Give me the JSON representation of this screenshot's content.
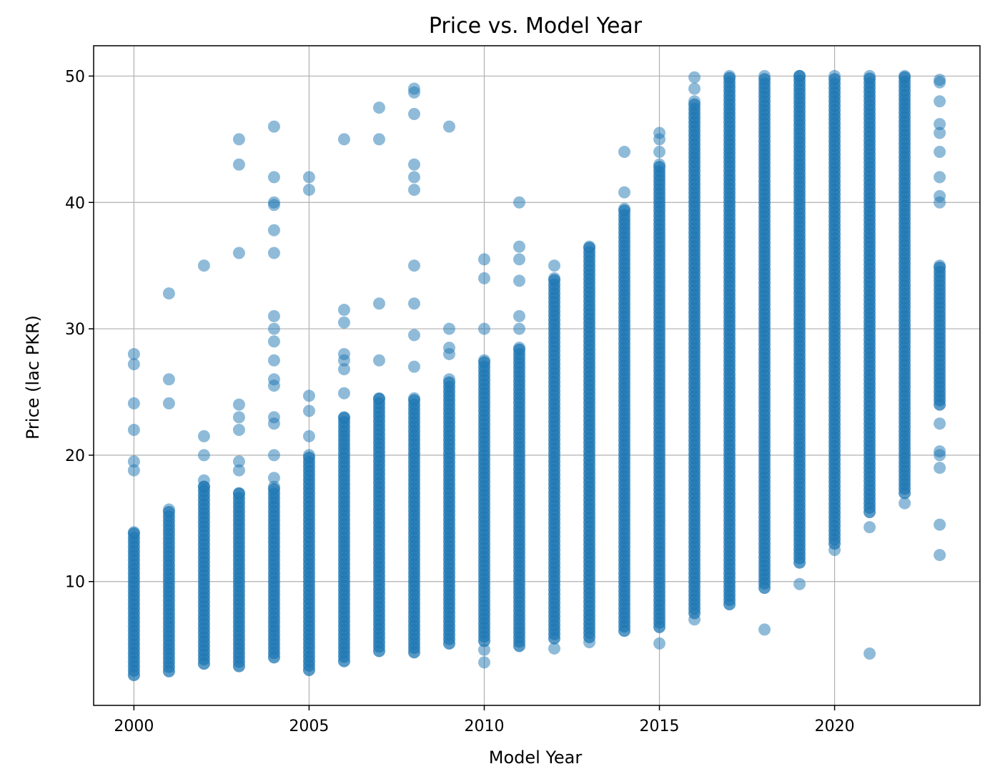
{
  "chart_data": {
    "type": "scatter",
    "title": "Price vs. Model Year",
    "xlabel": "Model Year",
    "ylabel": "Price (lac PKR)",
    "xlim": [
      1998.85,
      2024.15
    ],
    "ylim": [
      0.2,
      52.4
    ],
    "x_ticks": [
      2000,
      2005,
      2010,
      2015,
      2020
    ],
    "y_ticks": [
      10,
      20,
      30,
      40,
      50
    ],
    "grid": true,
    "marker_color": "#1f77b4",
    "marker_alpha": 0.5,
    "note_on_points": "Each year has a dense column of points spanning [dense_min, dense_max]; sparse outliers listed separately.",
    "dense_ranges": [
      {
        "year": 2000,
        "min": 2.6,
        "max": 13.9
      },
      {
        "year": 2001,
        "min": 2.9,
        "max": 15.7
      },
      {
        "year": 2002,
        "min": 3.5,
        "max": 17.5
      },
      {
        "year": 2003,
        "min": 3.3,
        "max": 17.0
      },
      {
        "year": 2004,
        "min": 4.0,
        "max": 17.5
      },
      {
        "year": 2005,
        "min": 3.0,
        "max": 20.0
      },
      {
        "year": 2006,
        "min": 3.7,
        "max": 23.0
      },
      {
        "year": 2007,
        "min": 4.5,
        "max": 24.5
      },
      {
        "year": 2008,
        "min": 4.4,
        "max": 24.5
      },
      {
        "year": 2009,
        "min": 5.1,
        "max": 26.0
      },
      {
        "year": 2010,
        "min": 5.3,
        "max": 27.5
      },
      {
        "year": 2011,
        "min": 4.9,
        "max": 28.5
      },
      {
        "year": 2012,
        "min": 5.5,
        "max": 34.0
      },
      {
        "year": 2013,
        "min": 5.6,
        "max": 36.5
      },
      {
        "year": 2014,
        "min": 6.1,
        "max": 39.5
      },
      {
        "year": 2015,
        "min": 6.4,
        "max": 43.0
      },
      {
        "year": 2016,
        "min": 7.5,
        "max": 48.0
      },
      {
        "year": 2017,
        "min": 8.2,
        "max": 50.0
      },
      {
        "year": 2018,
        "min": 9.5,
        "max": 50.0
      },
      {
        "year": 2019,
        "min": 11.5,
        "max": 50.0
      },
      {
        "year": 2020,
        "min": 13.0,
        "max": 50.0
      },
      {
        "year": 2021,
        "min": 15.5,
        "max": 50.0
      },
      {
        "year": 2022,
        "min": 17.0,
        "max": 50.0
      },
      {
        "year": 2023,
        "min": 24.0,
        "max": 35.0
      }
    ],
    "outliers": [
      {
        "x": 2000,
        "y": 28.0
      },
      {
        "x": 2000,
        "y": 27.2
      },
      {
        "x": 2000,
        "y": 24.1
      },
      {
        "x": 2000,
        "y": 22.0
      },
      {
        "x": 2000,
        "y": 19.5
      },
      {
        "x": 2000,
        "y": 18.8
      },
      {
        "x": 2001,
        "y": 32.8
      },
      {
        "x": 2001,
        "y": 26.0
      },
      {
        "x": 2001,
        "y": 24.1
      },
      {
        "x": 2002,
        "y": 35.0
      },
      {
        "x": 2002,
        "y": 21.5
      },
      {
        "x": 2002,
        "y": 20.0
      },
      {
        "x": 2002,
        "y": 18.0
      },
      {
        "x": 2003,
        "y": 45.0
      },
      {
        "x": 2003,
        "y": 43.0
      },
      {
        "x": 2003,
        "y": 36.0
      },
      {
        "x": 2003,
        "y": 24.0
      },
      {
        "x": 2003,
        "y": 23.0
      },
      {
        "x": 2003,
        "y": 22.0
      },
      {
        "x": 2003,
        "y": 19.5
      },
      {
        "x": 2003,
        "y": 18.8
      },
      {
        "x": 2004,
        "y": 46.0
      },
      {
        "x": 2004,
        "y": 42.0
      },
      {
        "x": 2004,
        "y": 40.0
      },
      {
        "x": 2004,
        "y": 39.8
      },
      {
        "x": 2004,
        "y": 37.8
      },
      {
        "x": 2004,
        "y": 36.0
      },
      {
        "x": 2004,
        "y": 31.0
      },
      {
        "x": 2004,
        "y": 30.0
      },
      {
        "x": 2004,
        "y": 29.0
      },
      {
        "x": 2004,
        "y": 27.5
      },
      {
        "x": 2004,
        "y": 26.0
      },
      {
        "x": 2004,
        "y": 25.5
      },
      {
        "x": 2004,
        "y": 23.0
      },
      {
        "x": 2004,
        "y": 22.5
      },
      {
        "x": 2004,
        "y": 20.0
      },
      {
        "x": 2004,
        "y": 18.2
      },
      {
        "x": 2005,
        "y": 42.0
      },
      {
        "x": 2005,
        "y": 41.0
      },
      {
        "x": 2005,
        "y": 24.7
      },
      {
        "x": 2005,
        "y": 23.5
      },
      {
        "x": 2005,
        "y": 21.5
      },
      {
        "x": 2006,
        "y": 45.0
      },
      {
        "x": 2006,
        "y": 31.5
      },
      {
        "x": 2006,
        "y": 30.5
      },
      {
        "x": 2006,
        "y": 28.0
      },
      {
        "x": 2006,
        "y": 27.5
      },
      {
        "x": 2006,
        "y": 26.8
      },
      {
        "x": 2006,
        "y": 24.9
      },
      {
        "x": 2007,
        "y": 47.5
      },
      {
        "x": 2007,
        "y": 45.0
      },
      {
        "x": 2007,
        "y": 32.0
      },
      {
        "x": 2007,
        "y": 27.5
      },
      {
        "x": 2008,
        "y": 49.0
      },
      {
        "x": 2008,
        "y": 48.7
      },
      {
        "x": 2008,
        "y": 47.0
      },
      {
        "x": 2008,
        "y": 43.0
      },
      {
        "x": 2008,
        "y": 42.0
      },
      {
        "x": 2008,
        "y": 41.0
      },
      {
        "x": 2008,
        "y": 35.0
      },
      {
        "x": 2008,
        "y": 32.0
      },
      {
        "x": 2008,
        "y": 29.5
      },
      {
        "x": 2008,
        "y": 27.0
      },
      {
        "x": 2009,
        "y": 46.0
      },
      {
        "x": 2009,
        "y": 30.0
      },
      {
        "x": 2009,
        "y": 28.5
      },
      {
        "x": 2009,
        "y": 28.0
      },
      {
        "x": 2010,
        "y": 35.5
      },
      {
        "x": 2010,
        "y": 34.0
      },
      {
        "x": 2010,
        "y": 30.0
      },
      {
        "x": 2010,
        "y": 4.6
      },
      {
        "x": 2010,
        "y": 3.6
      },
      {
        "x": 2011,
        "y": 40.0
      },
      {
        "x": 2011,
        "y": 36.5
      },
      {
        "x": 2011,
        "y": 35.5
      },
      {
        "x": 2011,
        "y": 33.8
      },
      {
        "x": 2011,
        "y": 31.0
      },
      {
        "x": 2011,
        "y": 30.0
      },
      {
        "x": 2012,
        "y": 35.0
      },
      {
        "x": 2012,
        "y": 4.7
      },
      {
        "x": 2013,
        "y": 5.2
      },
      {
        "x": 2014,
        "y": 44.0
      },
      {
        "x": 2014,
        "y": 40.8
      },
      {
        "x": 2015,
        "y": 45.5
      },
      {
        "x": 2015,
        "y": 45.0
      },
      {
        "x": 2015,
        "y": 44.0
      },
      {
        "x": 2015,
        "y": 5.1
      },
      {
        "x": 2016,
        "y": 49.9
      },
      {
        "x": 2016,
        "y": 49.0
      },
      {
        "x": 2016,
        "y": 7.0
      },
      {
        "x": 2018,
        "y": 6.2
      },
      {
        "x": 2019,
        "y": 9.8
      },
      {
        "x": 2020,
        "y": 12.5
      },
      {
        "x": 2021,
        "y": 14.3
      },
      {
        "x": 2021,
        "y": 4.3
      },
      {
        "x": 2022,
        "y": 16.2
      },
      {
        "x": 2023,
        "y": 49.7
      },
      {
        "x": 2023,
        "y": 49.5
      },
      {
        "x": 2023,
        "y": 48.0
      },
      {
        "x": 2023,
        "y": 46.2
      },
      {
        "x": 2023,
        "y": 45.5
      },
      {
        "x": 2023,
        "y": 44.0
      },
      {
        "x": 2023,
        "y": 42.0
      },
      {
        "x": 2023,
        "y": 40.5
      },
      {
        "x": 2023,
        "y": 40.0
      },
      {
        "x": 2023,
        "y": 22.5
      },
      {
        "x": 2023,
        "y": 20.3
      },
      {
        "x": 2023,
        "y": 20.0
      },
      {
        "x": 2023,
        "y": 19.0
      },
      {
        "x": 2023,
        "y": 14.5
      },
      {
        "x": 2023,
        "y": 12.1
      }
    ]
  }
}
